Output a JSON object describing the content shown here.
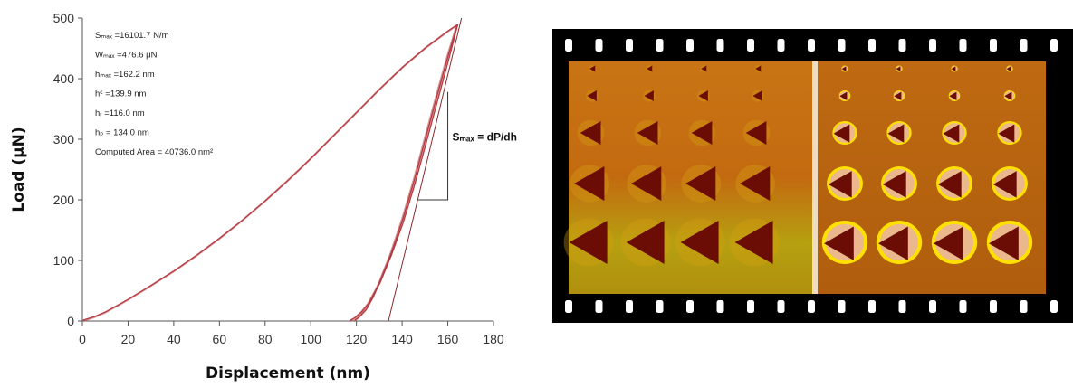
{
  "chart_data": {
    "type": "line",
    "xlabel": "Displacement (nm)",
    "ylabel": "Load (μN)",
    "xlim": [
      0,
      180
    ],
    "ylim": [
      0,
      500
    ],
    "xticks": [
      "0",
      "20",
      "40",
      "60",
      "80",
      "100",
      "120",
      "140",
      "160",
      "180"
    ],
    "yticks": [
      "0",
      "100",
      "200",
      "300",
      "400",
      "500"
    ],
    "grid": false,
    "legend": "none",
    "series": [
      {
        "role": "loading",
        "x": [
          0,
          5,
          10,
          20,
          30,
          40,
          50,
          60,
          70,
          80,
          90,
          100,
          110,
          120,
          130,
          140,
          150,
          160,
          164
        ],
        "y": [
          0,
          6,
          14,
          35,
          58,
          82,
          108,
          136,
          166,
          198,
          232,
          268,
          306,
          344,
          382,
          418,
          450,
          478,
          488
        ]
      },
      {
        "role": "unloading",
        "x": [
          164,
          160,
          155,
          150,
          145,
          140,
          135,
          130,
          125,
          122,
          119,
          117
        ],
        "y": [
          488,
          430,
          360,
          290,
          222,
          160,
          108,
          62,
          28,
          14,
          4,
          0
        ]
      },
      {
        "role": "unloading",
        "x": [
          164,
          160,
          155,
          150,
          145,
          140,
          135,
          130,
          127,
          124,
          121,
          119
        ],
        "y": [
          488,
          440,
          372,
          302,
          232,
          168,
          112,
          64,
          38,
          18,
          6,
          0
        ]
      },
      {
        "role": "tangent",
        "x": [
          134,
          166
        ],
        "y": [
          0,
          500
        ]
      }
    ],
    "slope_triangle": {
      "x": [
        147,
        160
      ],
      "y": [
        200,
        378
      ]
    },
    "annotations": [
      {
        "text": "Sₘₐₓ =16101.7 N/m"
      },
      {
        "text": "Wₘₐₓ =476.6 μN"
      },
      {
        "text": "hₘₐₓ =162.2 nm"
      },
      {
        "text": "hᶜ =139.9 nm"
      },
      {
        "text": "hᵣ =116.0 nm"
      },
      {
        "text": "hₚ = 134.0 nm"
      },
      {
        "text": "Computed Area = 40736.0 nm²"
      }
    ],
    "slope_label": "Sₘₐₓ = dP/dh",
    "colors": {
      "curve": "#b5393f",
      "tangent": "#8a2a2e",
      "axis": "#555555"
    }
  },
  "image": {
    "name": "indent-film-strip",
    "colors": {
      "left_bg": "#c46a10",
      "right_bg": "#b3620f",
      "indent": "#6b0d05",
      "rim": "#ffe000",
      "pileup": "#eab88c",
      "film": "#000000",
      "sprocket": "#ffffff"
    },
    "rows": 5,
    "columns_per_panel": 4
  }
}
